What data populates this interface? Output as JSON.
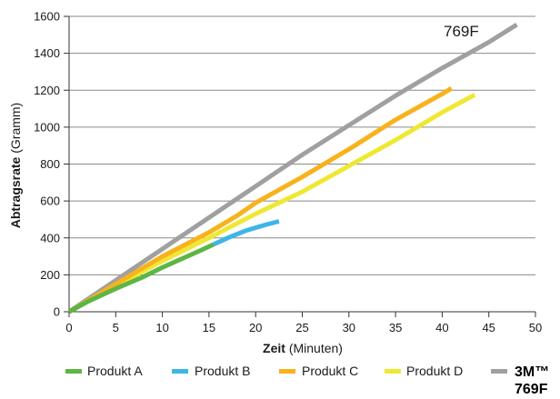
{
  "chart_data": {
    "type": "line",
    "xlabel_bold": "Zeit",
    "xlabel_rest": "(Minuten)",
    "ylabel_bold": "Abtragsrate",
    "ylabel_rest": "(Gramm)",
    "xlim": [
      0,
      50
    ],
    "ylim": [
      0,
      1600
    ],
    "xticks": [
      0,
      5,
      10,
      15,
      20,
      25,
      30,
      35,
      40,
      45,
      50
    ],
    "yticks": [
      0,
      200,
      400,
      600,
      800,
      1000,
      1200,
      1400,
      1600
    ],
    "grid": "horizontal",
    "legend_position": "bottom",
    "annotation": "769F",
    "series": [
      {
        "name": "Produkt A",
        "color": "#5db544",
        "x": [
          0,
          2,
          5,
          8,
          10,
          12,
          14,
          15.5
        ],
        "y": [
          0,
          55,
          125,
          190,
          240,
          285,
          330,
          365
        ]
      },
      {
        "name": "Produkt B",
        "color": "#3db6e6",
        "x": [
          15.5,
          17,
          19,
          21,
          22.5
        ],
        "y": [
          365,
          400,
          440,
          470,
          490
        ]
      },
      {
        "name": "Produkt C",
        "color": "#f7b21c",
        "x": [
          0,
          5,
          10,
          15,
          18,
          20,
          25,
          30,
          35,
          40,
          41
        ],
        "y": [
          0,
          150,
          300,
          430,
          520,
          590,
          730,
          880,
          1040,
          1180,
          1210
        ]
      },
      {
        "name": "Produkt D",
        "color": "#efe833",
        "x": [
          0,
          5,
          10,
          15,
          20,
          25,
          30,
          35,
          40,
          43.5
        ],
        "y": [
          0,
          140,
          275,
          400,
          530,
          650,
          790,
          930,
          1080,
          1175
        ]
      },
      {
        "name_line1": "3M™",
        "name_line2": "769F",
        "color": "#a0a0a0",
        "x": [
          0,
          5,
          10,
          15,
          20,
          25,
          30,
          35,
          40,
          45,
          48
        ],
        "y": [
          0,
          170,
          340,
          510,
          680,
          850,
          1010,
          1170,
          1320,
          1460,
          1555
        ]
      }
    ]
  }
}
